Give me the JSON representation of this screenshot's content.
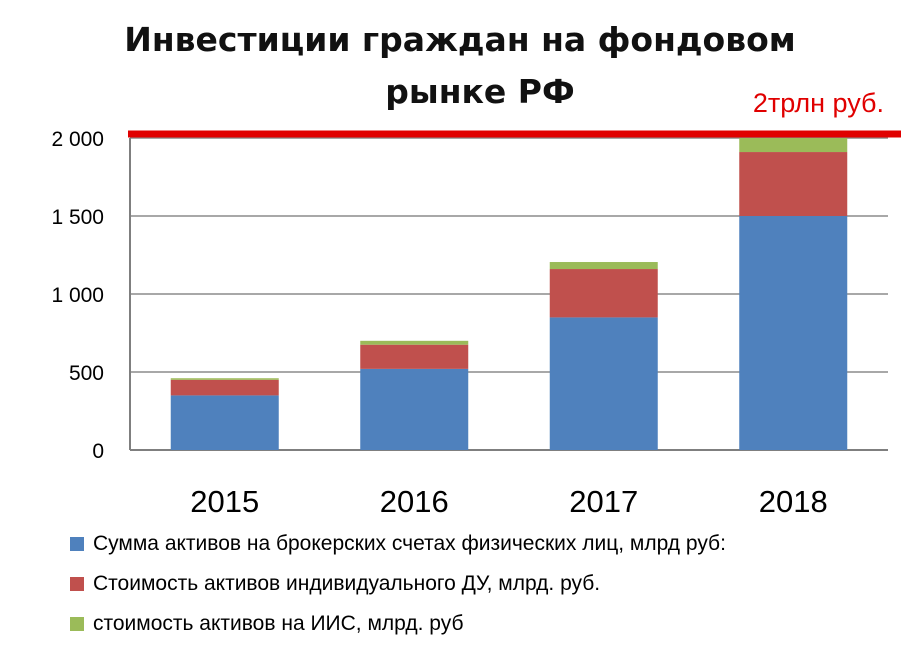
{
  "title_line1": "Инвестиции граждан на фондовом",
  "title_line2": "рынке РФ",
  "chart_data": {
    "type": "bar",
    "stacked": true,
    "categories": [
      "2015",
      "2016",
      "2017",
      "2018"
    ],
    "series": [
      {
        "name": "Сумма активов на брокерских счетах физических лиц, млрд руб:",
        "color": "#4F81BD",
        "values": [
          350,
          520,
          850,
          1500
        ]
      },
      {
        "name": "Стоимость активов индивидуального ДУ,  млрд. руб.",
        "color": "#C0504D",
        "values": [
          100,
          155,
          310,
          410
        ]
      },
      {
        "name": "стоимость активов на ИИС, млрд. руб",
        "color": "#9BBB59",
        "values": [
          10,
          25,
          45,
          90
        ]
      }
    ],
    "ylim": [
      0,
      2000
    ],
    "yticks": [
      0,
      500,
      1000,
      1500,
      2000
    ],
    "ytick_labels": [
      "0",
      "500",
      "1 000",
      "1 500",
      "2 000"
    ],
    "grid": true,
    "legend_position": "bottom",
    "reference_line": {
      "value": 2000,
      "label": "2трлн руб.",
      "color": "#E00000"
    }
  }
}
